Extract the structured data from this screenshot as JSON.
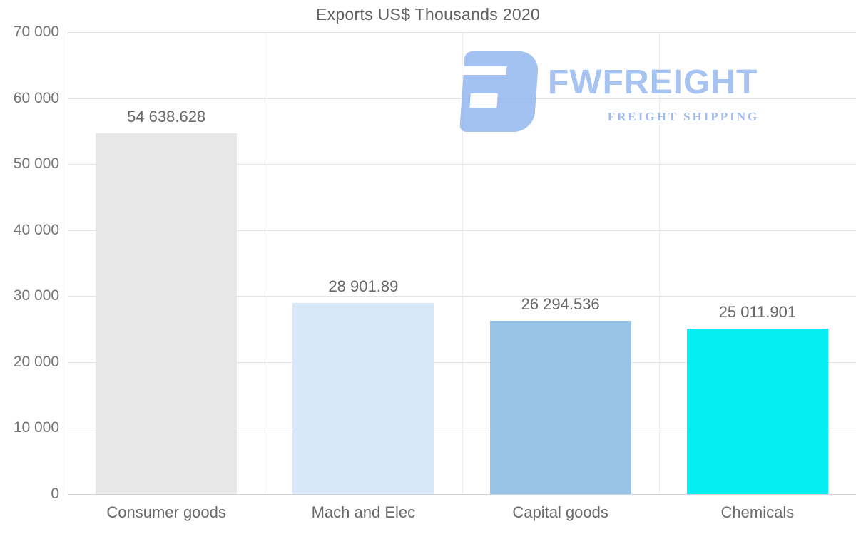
{
  "title": "Exports US$ Thousands 2020",
  "logo": {
    "wordmark": "FWFREIGHT",
    "tagline": "FREIGHT SHIPPING",
    "color": "#93b7f0"
  },
  "chart_data": {
    "type": "bar",
    "title": "Exports US$ Thousands 2020",
    "categories": [
      "Consumer goods",
      "Mach and Elec",
      "Capital goods",
      "Chemicals"
    ],
    "values": [
      54638.628,
      28901.89,
      26294.536,
      25011.901
    ],
    "value_labels": [
      "54 638.628",
      "28 901.89",
      "26 294.536",
      "25 011.901"
    ],
    "bar_colors": [
      "#e8e8e8",
      "#d9e8f8",
      "#97c3e7",
      "#05eef2"
    ],
    "xlabel": "",
    "ylabel": "",
    "ylim": [
      0,
      70000
    ],
    "ytick_step": 10000,
    "ytick_labels": [
      "0",
      "10 000",
      "20 000",
      "30 000",
      "40 000",
      "50 000",
      "60 000",
      "70 000"
    ],
    "grid": true,
    "legend": false,
    "legend_position": "none"
  }
}
